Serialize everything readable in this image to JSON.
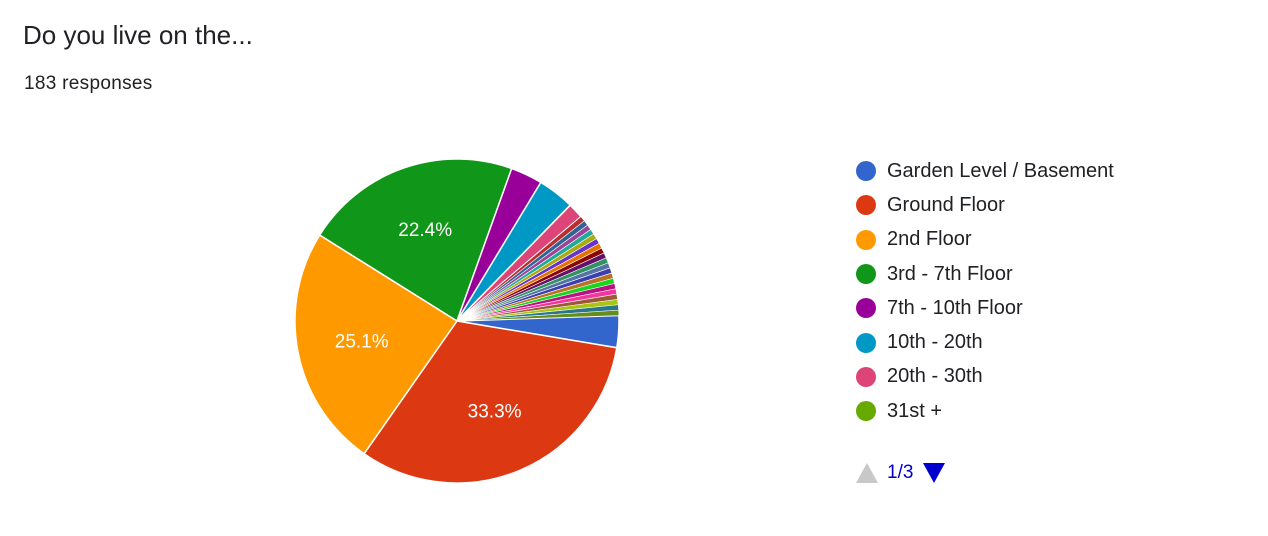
{
  "header": {
    "title": "Do you live on the...",
    "responses": "183 responses"
  },
  "chart_data": {
    "type": "pie",
    "total_responses": 183,
    "slices": [
      {
        "label": "Garden Level / Basement",
        "value": 3.3,
        "color": "#3366cc",
        "shown_label": ""
      },
      {
        "label": "Ground Floor",
        "value": 33.3,
        "color": "#dc3912",
        "shown_label": "33.3%"
      },
      {
        "label": "2nd Floor",
        "value": 25.1,
        "color": "#ff9900",
        "shown_label": "25.1%"
      },
      {
        "label": "3rd - 7th Floor",
        "value": 22.4,
        "color": "#109618",
        "shown_label": "22.4%"
      },
      {
        "label": "7th - 10th Floor",
        "value": 3.3,
        "color": "#990099",
        "shown_label": ""
      },
      {
        "label": "10th - 20th",
        "value": 3.8,
        "color": "#0099c6",
        "shown_label": ""
      },
      {
        "label": "20th - 30th",
        "value": 1.6,
        "color": "#dd4477",
        "shown_label": ""
      },
      {
        "label": "31st +",
        "value": 0.0,
        "color": "#66aa00",
        "shown_label": ""
      }
    ],
    "other_small_slices": [
      {
        "value": 0.55,
        "color": "#b82e2e"
      },
      {
        "value": 0.55,
        "color": "#316395"
      },
      {
        "value": 0.55,
        "color": "#994499"
      },
      {
        "value": 0.55,
        "color": "#22aa99"
      },
      {
        "value": 0.55,
        "color": "#aaaa11"
      },
      {
        "value": 0.55,
        "color": "#6633cc"
      },
      {
        "value": 0.55,
        "color": "#e67300"
      },
      {
        "value": 0.55,
        "color": "#8b0707"
      },
      {
        "value": 0.55,
        "color": "#651067"
      },
      {
        "value": 0.55,
        "color": "#329262"
      },
      {
        "value": 0.55,
        "color": "#5574a6"
      },
      {
        "value": 0.55,
        "color": "#3b3eac"
      },
      {
        "value": 0.55,
        "color": "#b77322"
      },
      {
        "value": 0.55,
        "color": "#16d620"
      },
      {
        "value": 0.55,
        "color": "#b91383"
      },
      {
        "value": 0.55,
        "color": "#f4359e"
      },
      {
        "value": 0.55,
        "color": "#9c5935"
      },
      {
        "value": 0.55,
        "color": "#a9c413"
      },
      {
        "value": 0.55,
        "color": "#2a778d"
      },
      {
        "value": 0.55,
        "color": "#668d1c"
      }
    ],
    "legend_position": "right",
    "legend_pager": "1/3"
  },
  "colors": {
    "pager_active": "#0000cc",
    "pager_inactive": "#c8c8c8"
  }
}
